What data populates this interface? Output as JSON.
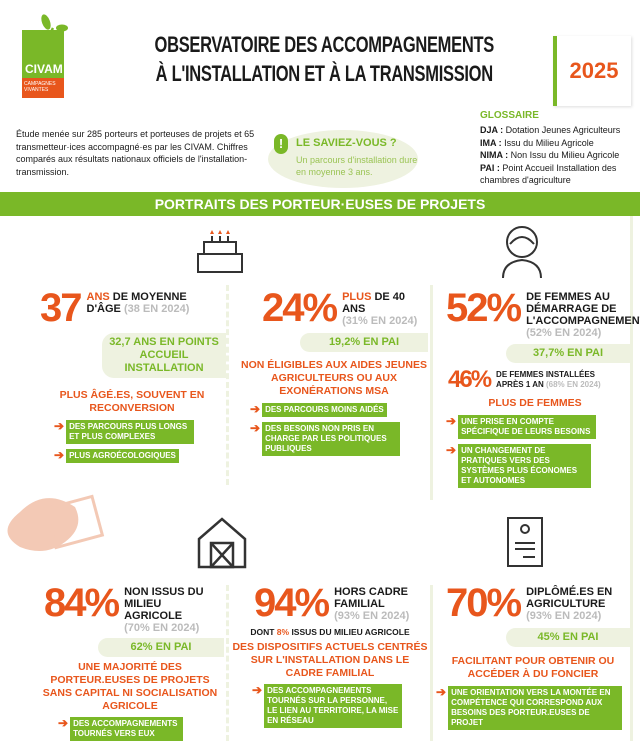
{
  "header": {
    "logo_text": "CIVAM",
    "logo_sub": "CAMPAGNES VIVANTES",
    "title_line1": "OBSERVATOIRE DES ACCOMPAGNEMENTS",
    "title_line2": "À L'INSTALLATION ET À LA TRANSMISSION",
    "year": "2025"
  },
  "intro": "Étude menée sur 285 porteurs et porteuses de projets et 65 transmetteur·ices accompagné·es par les CIVAM. Chiffres comparés aux résultats nationaux officiels de l'installation-transmission.",
  "saviez": {
    "title": "LE SAVIEZ-VOUS ?",
    "text": "Un parcours d'installation dure en moyenne 3 ans."
  },
  "glossaire": {
    "title": "GLOSSAIRE",
    "items": [
      {
        "k": "DJA :",
        "v": " Dotation Jeunes Agriculteurs"
      },
      {
        "k": "IMA :",
        "v": " Issu du Milieu Agricole"
      },
      {
        "k": "NIMA :",
        "v": " Non Issu du Milieu Agricole"
      },
      {
        "k": "PAI :",
        "v": " Point Accueil Installation des chambres d'agriculture"
      }
    ]
  },
  "section_title": "PORTRAITS DES PORTEUR·EUSES DE PROJETS",
  "cards": [
    {
      "big": "37",
      "label_hl": "ANS",
      "label": " DE MOYENNE D'ÂGE ",
      "prev": "(38 EN 2024)",
      "pai": "32,7 ANS EN POINTS ACCUEIL INSTALLATION",
      "concl": "PLUS ÂGÉ.ES, SOUVENT EN RECONVERSION",
      "bullets": [
        "DES PARCOURS PLUS LONGS ET PLUS COMPLEXES",
        "PLUS AGROÉCOLOGIQUES"
      ]
    },
    {
      "big": "24%",
      "label_hl": "PLUS",
      "label": " DE 40 ANS",
      "prev": "(31% EN 2024)",
      "pai": "19,2% EN PAI",
      "concl": "NON ÉLIGIBLES AUX AIDES JEUNES AGRICULTEURS OU AUX EXONÉRATIONS MSA",
      "bullets": [
        "DES PARCOURS MOINS AIDÉS",
        "DES BESOINS NON PRIS EN CHARGE PAR LES POLITIQUES PUBLIQUES"
      ]
    },
    {
      "big": "52%",
      "label": "DE FEMMES AU DÉMARRAGE DE L'ACCOMPAGNEMENT",
      "prev": "(52% EN 2024)",
      "pai": "37,7% EN PAI",
      "sub_big": "46%",
      "sub_label": "DE FEMMES INSTALLÉES APRÈS 1 AN ",
      "sub_prev": "(68% EN 2024)",
      "concl": "PLUS DE FEMMES",
      "bullets": [
        "UNE PRISE EN COMPTE SPÉCIFIQUE DE LEURS BESOINS",
        "UN CHANGEMENT DE PRATIQUES VERS DES SYSTÈMES PLUS ÉCONOMES ET AUTONOMES"
      ]
    },
    {
      "big": "84%",
      "label": "NON ISSUS DU MILIEU AGRICOLE",
      "prev": "(70% EN 2024)",
      "pai": "62% EN PAI",
      "concl": "UNE MAJORITÉ DES PORTEUR.EUSES DE PROJETS SANS CAPITAL NI SOCIALISATION AGRICOLE",
      "bullets": [
        "DES ACCOMPAGNEMENTS TOURNÉS VERS EUX"
      ]
    },
    {
      "big": "94%",
      "label": "HORS CADRE FAMILIAL",
      "prev": "(93% EN 2024)",
      "dont_a": "DONT ",
      "dont_hl": "8%",
      "dont_b": " ISSUS DU MILIEU AGRICOLE",
      "concl": "DES DISPOSITIFS ACTUELS CENTRÉS SUR L'INSTALLATION DANS LE CADRE FAMILIAL",
      "bullets": [
        "DES ACCOMPAGNEMENTS TOURNÉS SUR LA PERSONNE, LE LIEN AU TERRITOIRE, LA MISE EN RÉSEAU"
      ]
    },
    {
      "big": "70%",
      "label": "DIPLÔMÉ.ES EN AGRICULTURE",
      "prev": "(93% EN 2024)",
      "pai": "45% EN PAI",
      "concl": "FACILITANT POUR OBTENIR OU ACCÉDER À DU FONCIER",
      "bullets": [
        "UNE ORIENTATION VERS LA MONTÉE EN COMPÉTENCE QUI CORRESPOND AUX BESOINS DES PORTEUR.EUSES DE PROJET"
      ]
    }
  ],
  "colors": {
    "orange": "#e8561c",
    "green": "#7ab828",
    "light_green": "#eef2e0"
  }
}
